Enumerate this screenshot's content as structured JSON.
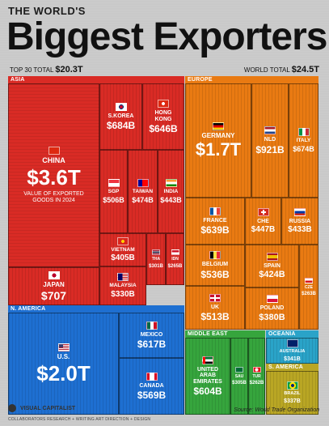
{
  "header": {
    "kicker": "THE WORLD'S",
    "title": "Biggest Exporters",
    "top30_label": "TOP 30 TOTAL",
    "top30_value": "$20.3T",
    "world_label": "WORLD TOTAL",
    "world_value": "$24.5T"
  },
  "chart_data": {
    "type": "treemap",
    "unit": "USD",
    "year": 2024,
    "regions": [
      {
        "name": "ASIA",
        "color": "#d92b25"
      },
      {
        "name": "EUROPE",
        "color": "#e97a12"
      },
      {
        "name": "N. AMERICA",
        "color": "#1e6fd1"
      },
      {
        "name": "MIDDLE EAST",
        "color": "#36a53d"
      },
      {
        "name": "OCEANIA",
        "color": "#2aa3c8"
      },
      {
        "name": "S. AMERICA",
        "color": "#b9a624"
      }
    ],
    "tiles": [
      {
        "id": "china",
        "region": "ASIA",
        "name": "CHINA",
        "value_label": "$3.6T",
        "value_usd_b": 3600,
        "note": "VALUE OF EXPORTED\nGOODS IN 2024",
        "flag": "cn"
      },
      {
        "id": "skorea",
        "region": "ASIA",
        "name": "S.KOREA",
        "value_label": "$684B",
        "value_usd_b": 684,
        "flag": "kr"
      },
      {
        "id": "hongkong",
        "region": "ASIA",
        "name": "HONG\nKONG",
        "value_label": "$646B",
        "value_usd_b": 646,
        "flag": "hk"
      },
      {
        "id": "sgp",
        "region": "ASIA",
        "name": "SGP",
        "value_label": "$506B",
        "value_usd_b": 506,
        "flag": "sg"
      },
      {
        "id": "taiwan",
        "region": "ASIA",
        "name": "TAIWAN",
        "value_label": "$474B",
        "value_usd_b": 474,
        "flag": "tw"
      },
      {
        "id": "india",
        "region": "ASIA",
        "name": "INDIA",
        "value_label": "$443B",
        "value_usd_b": 443,
        "flag": "in"
      },
      {
        "id": "vietnam",
        "region": "ASIA",
        "name": "VIETNAM",
        "value_label": "$405B",
        "value_usd_b": 405,
        "flag": "vn"
      },
      {
        "id": "tha",
        "region": "ASIA",
        "name": "THA",
        "value_label": "$301B",
        "value_usd_b": 301,
        "flag": "th"
      },
      {
        "id": "idn",
        "region": "ASIA",
        "name": "IDN",
        "value_label": "$265B",
        "value_usd_b": 265,
        "flag": "id"
      },
      {
        "id": "malaysia",
        "region": "ASIA",
        "name": "MALAYSIA",
        "value_label": "$330B",
        "value_usd_b": 330,
        "flag": "my"
      },
      {
        "id": "japan",
        "region": "ASIA",
        "name": "JAPAN",
        "value_label": "$707",
        "value_usd_b": 707,
        "flag": "jp"
      },
      {
        "id": "germany",
        "region": "EUROPE",
        "name": "GERMANY",
        "value_label": "$1.7T",
        "value_usd_b": 1700,
        "flag": "de"
      },
      {
        "id": "nld",
        "region": "EUROPE",
        "name": "NLD",
        "value_label": "$921B",
        "value_usd_b": 921,
        "flag": "nl"
      },
      {
        "id": "italy",
        "region": "EUROPE",
        "name": "ITALY",
        "value_label": "$674B",
        "value_usd_b": 674,
        "flag": "it"
      },
      {
        "id": "france",
        "region": "EUROPE",
        "name": "FRANCE",
        "value_label": "$639B",
        "value_usd_b": 639,
        "flag": "fr"
      },
      {
        "id": "che",
        "region": "EUROPE",
        "name": "CHE",
        "value_label": "$447B",
        "value_usd_b": 447,
        "flag": "ch"
      },
      {
        "id": "russia",
        "region": "EUROPE",
        "name": "RUSSIA",
        "value_label": "$433B",
        "value_usd_b": 433,
        "flag": "ru"
      },
      {
        "id": "belgium",
        "region": "EUROPE",
        "name": "BELGIUM",
        "value_label": "$536B",
        "value_usd_b": 536,
        "flag": "be"
      },
      {
        "id": "spain",
        "region": "EUROPE",
        "name": "SPAIN",
        "value_label": "$424B",
        "value_usd_b": 424,
        "flag": "es"
      },
      {
        "id": "cze",
        "region": "EUROPE",
        "name": "CZE",
        "value_label": "$263B",
        "value_usd_b": 263,
        "flag": "cz"
      },
      {
        "id": "uk",
        "region": "EUROPE",
        "name": "UK",
        "value_label": "$513B",
        "value_usd_b": 513,
        "flag": "gb"
      },
      {
        "id": "poland",
        "region": "EUROPE",
        "name": "POLAND",
        "value_label": "$380B",
        "value_usd_b": 380,
        "flag": "pl"
      },
      {
        "id": "us",
        "region": "N. AMERICA",
        "name": "U.S.",
        "value_label": "$2.0T",
        "value_usd_b": 2000,
        "flag": "us"
      },
      {
        "id": "mexico",
        "region": "N. AMERICA",
        "name": "MEXICO",
        "value_label": "$617B",
        "value_usd_b": 617,
        "flag": "mx"
      },
      {
        "id": "canada",
        "region": "N. AMERICA",
        "name": "CANADA",
        "value_label": "$569B",
        "value_usd_b": 569,
        "flag": "ca"
      },
      {
        "id": "uae",
        "region": "MIDDLE EAST",
        "name": "UNITED\nARAB\nEMIRATES",
        "value_label": "$604B",
        "value_usd_b": 604,
        "flag": "ae"
      },
      {
        "id": "sau",
        "region": "MIDDLE EAST",
        "name": "SAU",
        "value_label": "$305B",
        "value_usd_b": 305,
        "flag": "sa"
      },
      {
        "id": "tur",
        "region": "MIDDLE EAST",
        "name": "TUR",
        "value_label": "$262B",
        "value_usd_b": 262,
        "flag": "tr"
      },
      {
        "id": "australia",
        "region": "OCEANIA",
        "name": "AUSTRALIA",
        "value_label": "$341B",
        "value_usd_b": 341,
        "flag": "au"
      },
      {
        "id": "brazil",
        "region": "S. AMERICA",
        "name": "BRAZIL",
        "value_label": "$337B",
        "value_usd_b": 337,
        "flag": "br"
      }
    ]
  },
  "footer": {
    "logo": "VISUAL CAPITALIST",
    "source": "Source: World Trade Organization",
    "credits": "COLLABORATORS   RESEARCH + WRITING   ART DIRECTION + DESIGN"
  }
}
